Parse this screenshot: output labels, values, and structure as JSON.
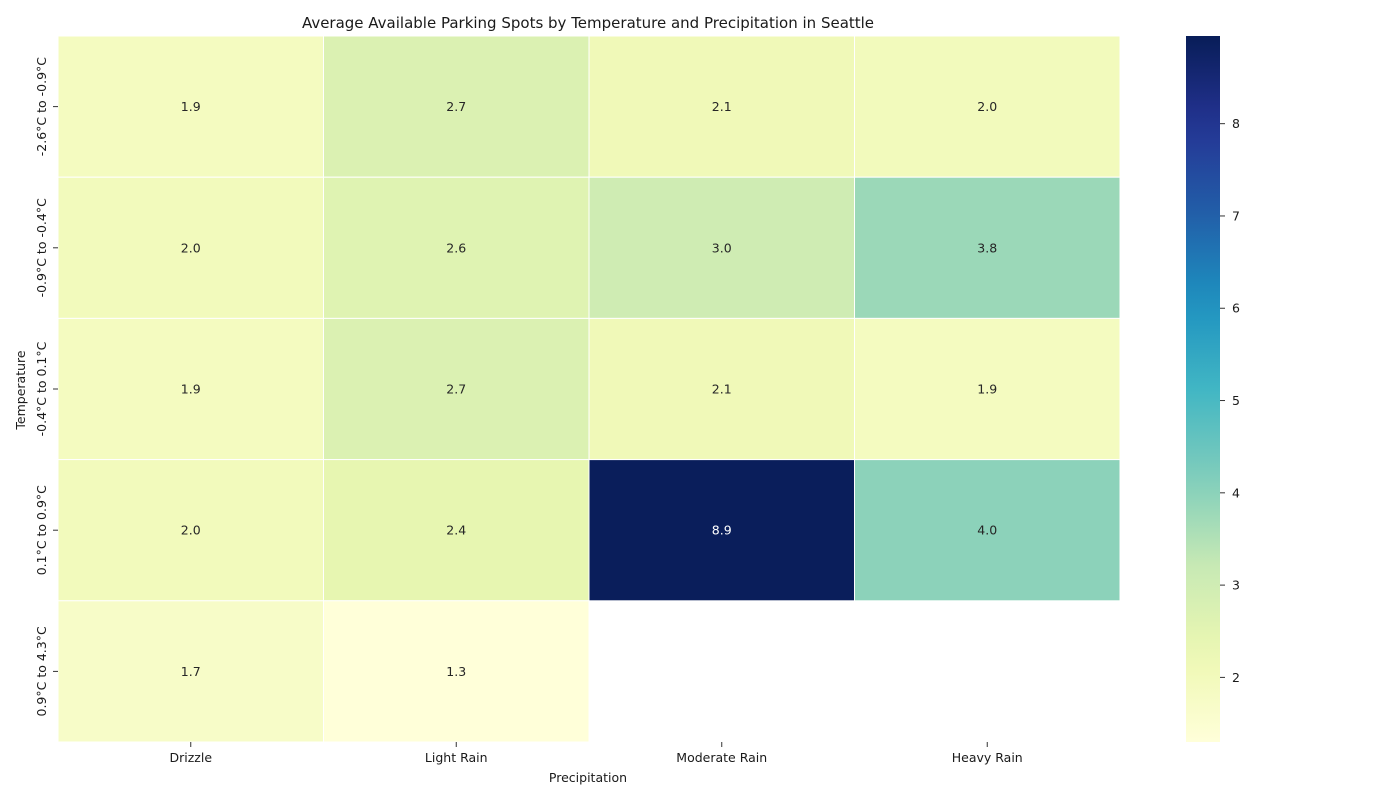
{
  "chart_data": {
    "type": "heatmap",
    "title": "Average Available Parking Spots by Temperature and Precipitation in Seattle",
    "xlabel": "Precipitation",
    "ylabel": "Temperature",
    "x_categories": [
      "Drizzle",
      "Light Rain",
      "Moderate Rain",
      "Heavy Rain"
    ],
    "y_categories": [
      "-2.6°C to -0.9°C",
      "-0.9°C to -0.4°C",
      "-0.4°C to 0.1°C",
      "0.1°C to 0.9°C",
      "0.9°C to 4.3°C"
    ],
    "values": [
      [
        1.9,
        2.7,
        2.1,
        2.0
      ],
      [
        2.0,
        2.6,
        3.0,
        3.8
      ],
      [
        1.9,
        2.7,
        2.1,
        1.9
      ],
      [
        2.0,
        2.4,
        8.9,
        4.0
      ],
      [
        1.7,
        1.3,
        null,
        null
      ]
    ],
    "colorbar": {
      "min": 1.3,
      "max": 8.95,
      "ticks": [
        2,
        3,
        4,
        5,
        6,
        7,
        8
      ],
      "colormap": "YlGnBu"
    },
    "grid": false
  }
}
